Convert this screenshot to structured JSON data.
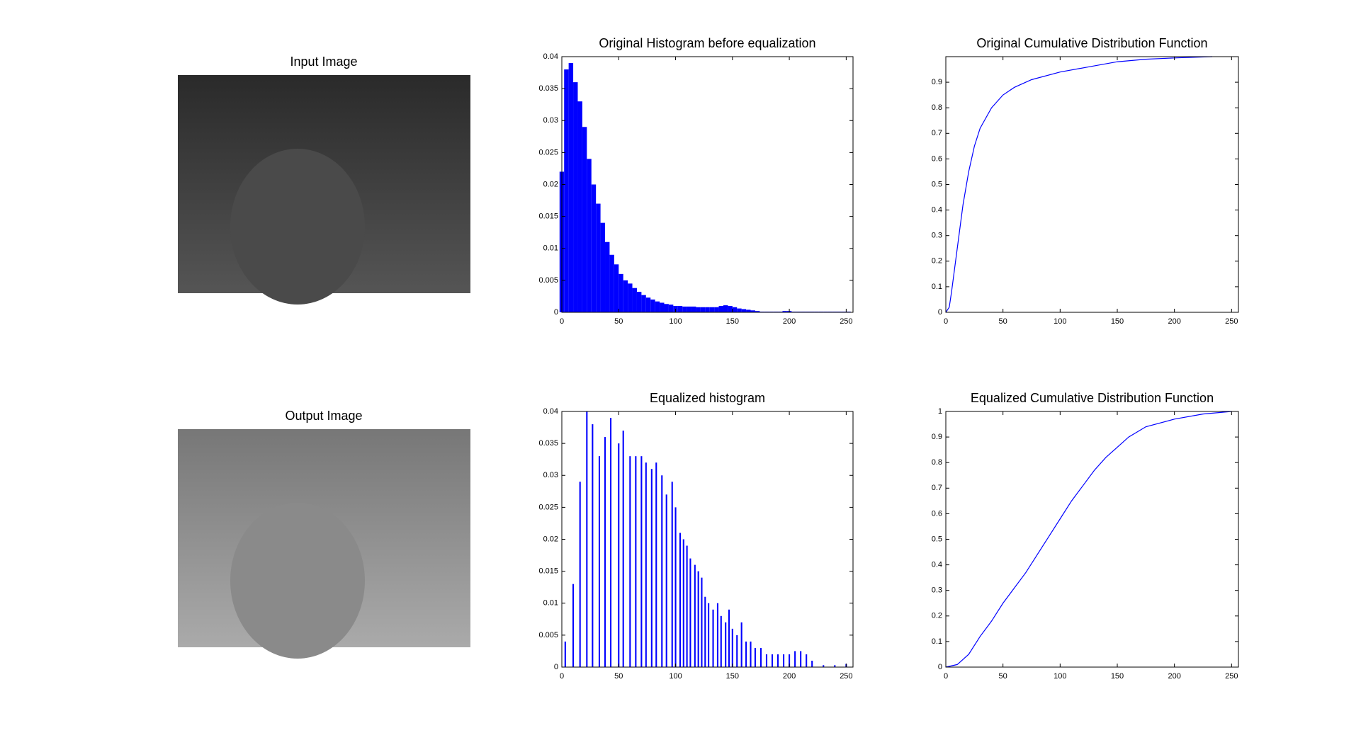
{
  "images": [
    {
      "title": "Input Image"
    },
    {
      "title": "Output Image"
    }
  ],
  "chart_data": [
    {
      "type": "bar",
      "title": "Original Histogram before equalization",
      "color": "#0000ff",
      "x": [
        0,
        4,
        8,
        12,
        16,
        20,
        24,
        28,
        32,
        36,
        40,
        44,
        48,
        52,
        56,
        60,
        64,
        68,
        72,
        76,
        80,
        84,
        88,
        92,
        96,
        100,
        104,
        108,
        112,
        116,
        120,
        124,
        128,
        132,
        136,
        140,
        144,
        148,
        152,
        156,
        160,
        164,
        168,
        172,
        176,
        180,
        184,
        188,
        192,
        196,
        200,
        204,
        208,
        212,
        216,
        220,
        224,
        228,
        232,
        236,
        240,
        244,
        248,
        252
      ],
      "values": [
        0.022,
        0.038,
        0.039,
        0.036,
        0.033,
        0.029,
        0.024,
        0.02,
        0.017,
        0.014,
        0.011,
        0.009,
        0.0075,
        0.006,
        0.005,
        0.0045,
        0.0038,
        0.0032,
        0.0027,
        0.0023,
        0.002,
        0.0017,
        0.0015,
        0.0013,
        0.0012,
        0.001,
        0.001,
        0.0009,
        0.0009,
        0.0009,
        0.0008,
        0.0008,
        0.0008,
        0.0008,
        0.0008,
        0.001,
        0.0011,
        0.001,
        0.0008,
        0.0006,
        0.0005,
        0.0004,
        0.0003,
        0.0002,
        0.0001,
        0.0001,
        0.0001,
        0.0001,
        0.0001,
        0.0002,
        0.0002,
        0.0001,
        0.0001,
        0.0001,
        0.0001,
        0.0001,
        0.0001,
        0.0001,
        0.0001,
        0.0001,
        0.0001,
        0.0001,
        0.0001,
        0.0001
      ],
      "xlim": [
        0,
        256
      ],
      "xticks": [
        0,
        50,
        100,
        150,
        200,
        250
      ],
      "ylim": [
        0,
        0.04
      ],
      "yticks": [
        0,
        0.005,
        0.01,
        0.015,
        0.02,
        0.025,
        0.03,
        0.035,
        0.04
      ]
    },
    {
      "type": "line",
      "title": "Original Cumulative Distribution Function",
      "color": "#0000ff",
      "x": [
        0,
        3,
        5,
        10,
        15,
        20,
        25,
        30,
        40,
        50,
        60,
        75,
        100,
        125,
        150,
        175,
        200,
        233
      ],
      "values": [
        0,
        0.02,
        0.08,
        0.25,
        0.42,
        0.55,
        0.65,
        0.72,
        0.8,
        0.85,
        0.88,
        0.91,
        0.94,
        0.96,
        0.98,
        0.99,
        0.995,
        1
      ],
      "xlim": [
        0,
        256
      ],
      "xticks": [
        0,
        50,
        100,
        150,
        200,
        250
      ],
      "ylim": [
        0,
        1
      ],
      "yticks": [
        0,
        0.1,
        0.2,
        0.3,
        0.4,
        0.5,
        0.6,
        0.7,
        0.8,
        0.9
      ]
    },
    {
      "type": "bar",
      "title": "Equalized histogram",
      "color": "#0000ff",
      "x": [
        3,
        10,
        16,
        22,
        27,
        33,
        38,
        43,
        50,
        54,
        60,
        65,
        70,
        74,
        79,
        83,
        88,
        92,
        97,
        100,
        104,
        107,
        110,
        113,
        117,
        120,
        123,
        126,
        129,
        133,
        137,
        140,
        144,
        147,
        150,
        154,
        158,
        162,
        166,
        170,
        175,
        180,
        185,
        190,
        195,
        200,
        205,
        210,
        215,
        220,
        230,
        240,
        250
      ],
      "values": [
        0.004,
        0.013,
        0.029,
        0.04,
        0.038,
        0.033,
        0.036,
        0.039,
        0.035,
        0.037,
        0.033,
        0.033,
        0.033,
        0.032,
        0.031,
        0.032,
        0.03,
        0.027,
        0.029,
        0.025,
        0.021,
        0.02,
        0.019,
        0.017,
        0.016,
        0.015,
        0.014,
        0.011,
        0.01,
        0.009,
        0.01,
        0.008,
        0.007,
        0.009,
        0.006,
        0.005,
        0.007,
        0.004,
        0.004,
        0.003,
        0.003,
        0.002,
        0.002,
        0.002,
        0.002,
        0.002,
        0.0025,
        0.0025,
        0.002,
        0.001,
        0.0003,
        0.0003,
        0.0005
      ],
      "xlim": [
        0,
        256
      ],
      "xticks": [
        0,
        50,
        100,
        150,
        200,
        250
      ],
      "ylim": [
        0,
        0.04
      ],
      "yticks": [
        0,
        0.005,
        0.01,
        0.015,
        0.02,
        0.025,
        0.03,
        0.035,
        0.04
      ]
    },
    {
      "type": "line",
      "title": "Equalized Cumulative Distribution Function",
      "color": "#0000ff",
      "x": [
        0,
        10,
        20,
        30,
        40,
        50,
        60,
        70,
        80,
        90,
        100,
        110,
        120,
        130,
        140,
        150,
        160,
        175,
        200,
        225,
        250
      ],
      "values": [
        0,
        0.01,
        0.05,
        0.12,
        0.18,
        0.25,
        0.31,
        0.37,
        0.44,
        0.51,
        0.58,
        0.65,
        0.71,
        0.77,
        0.82,
        0.86,
        0.9,
        0.94,
        0.97,
        0.99,
        1
      ],
      "xlim": [
        0,
        256
      ],
      "xticks": [
        0,
        50,
        100,
        150,
        200,
        250
      ],
      "ylim": [
        0,
        1
      ],
      "yticks": [
        0,
        0.1,
        0.2,
        0.3,
        0.4,
        0.5,
        0.6,
        0.7,
        0.8,
        0.9,
        1
      ]
    }
  ]
}
